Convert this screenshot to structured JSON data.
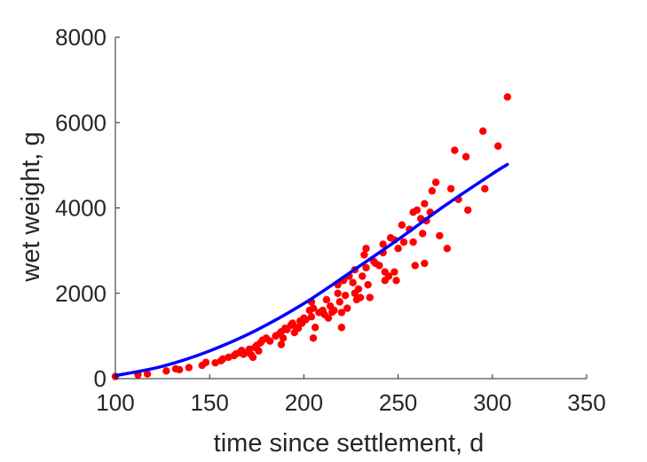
{
  "chart_data": {
    "type": "scatter",
    "title": "",
    "xlabel": "time since settlement, d",
    "ylabel": "wet weight, g",
    "xlim": [
      100,
      350
    ],
    "ylim": [
      0,
      8000
    ],
    "xticks": [
      100,
      150,
      200,
      250,
      300,
      350
    ],
    "yticks": [
      0,
      2000,
      4000,
      6000,
      8000
    ],
    "grid": false,
    "legend": "none",
    "colors": {
      "points": "#ff0000",
      "fit": "#0000ff",
      "axes": "#262626"
    },
    "series": [
      {
        "type": "scatter",
        "points": [
          [
            100,
            50
          ],
          [
            112,
            90
          ],
          [
            117,
            110
          ],
          [
            127,
            180
          ],
          [
            132,
            230
          ],
          [
            134,
            210
          ],
          [
            139,
            260
          ],
          [
            146,
            310
          ],
          [
            148,
            380
          ],
          [
            153,
            370
          ],
          [
            156,
            420
          ],
          [
            157,
            460
          ],
          [
            160,
            500
          ],
          [
            163,
            540
          ],
          [
            164,
            580
          ],
          [
            166,
            610
          ],
          [
            167,
            660
          ],
          [
            168,
            570
          ],
          [
            170,
            620
          ],
          [
            171,
            690
          ],
          [
            172,
            560
          ],
          [
            173,
            500
          ],
          [
            174,
            730
          ],
          [
            175,
            780
          ],
          [
            176,
            650
          ],
          [
            177,
            840
          ],
          [
            178,
            900
          ],
          [
            180,
            950
          ],
          [
            182,
            880
          ],
          [
            185,
            1000
          ],
          [
            187,
            1050
          ],
          [
            188,
            1100
          ],
          [
            188,
            800
          ],
          [
            189,
            950
          ],
          [
            190,
            1180
          ],
          [
            191,
            1150
          ],
          [
            193,
            1250
          ],
          [
            194,
            1300
          ],
          [
            195,
            1080
          ],
          [
            196,
            1200
          ],
          [
            197,
            1180
          ],
          [
            198,
            1350
          ],
          [
            199,
            1300
          ],
          [
            200,
            1420
          ],
          [
            201,
            1380
          ],
          [
            203,
            1600
          ],
          [
            204,
            1800
          ],
          [
            204,
            1450
          ],
          [
            205,
            1650
          ],
          [
            205,
            950
          ],
          [
            206,
            1200
          ],
          [
            208,
            1550
          ],
          [
            210,
            1600
          ],
          [
            211,
            1500
          ],
          [
            212,
            1850
          ],
          [
            213,
            1420
          ],
          [
            214,
            1700
          ],
          [
            215,
            1560
          ],
          [
            216,
            1600
          ],
          [
            218,
            2000
          ],
          [
            218,
            2200
          ],
          [
            219,
            1800
          ],
          [
            220,
            1550
          ],
          [
            220,
            1200
          ],
          [
            221,
            2300
          ],
          [
            222,
            1950
          ],
          [
            223,
            1650
          ],
          [
            224,
            2400
          ],
          [
            226,
            2250
          ],
          [
            227,
            2550
          ],
          [
            227,
            2000
          ],
          [
            228,
            1850
          ],
          [
            229,
            2100
          ],
          [
            230,
            1900
          ],
          [
            231,
            2400
          ],
          [
            232,
            2900
          ],
          [
            233,
            3050
          ],
          [
            233,
            2600
          ],
          [
            234,
            2200
          ],
          [
            235,
            1900
          ],
          [
            237,
            2750
          ],
          [
            238,
            2700
          ],
          [
            240,
            2650
          ],
          [
            242,
            2950
          ],
          [
            242,
            3150
          ],
          [
            243,
            2500
          ],
          [
            243,
            2300
          ],
          [
            245,
            2400
          ],
          [
            246,
            3300
          ],
          [
            248,
            2500
          ],
          [
            248,
            3250
          ],
          [
            249,
            2300
          ],
          [
            250,
            3050
          ],
          [
            252,
            3600
          ],
          [
            253,
            3200
          ],
          [
            256,
            3500
          ],
          [
            258,
            3900
          ],
          [
            258,
            3200
          ],
          [
            259,
            2650
          ],
          [
            260,
            3950
          ],
          [
            262,
            3750
          ],
          [
            263,
            3400
          ],
          [
            264,
            4100
          ],
          [
            264,
            2700
          ],
          [
            265,
            3700
          ],
          [
            267,
            3900
          ],
          [
            268,
            4400
          ],
          [
            270,
            4600
          ],
          [
            272,
            3350
          ],
          [
            276,
            3050
          ],
          [
            278,
            4450
          ],
          [
            280,
            5350
          ],
          [
            282,
            4200
          ],
          [
            286,
            5200
          ],
          [
            287,
            3950
          ],
          [
            295,
            5800
          ],
          [
            296,
            4450
          ],
          [
            303,
            5450
          ],
          [
            308,
            6600
          ]
        ]
      },
      {
        "type": "line",
        "points": [
          [
            100,
            70
          ],
          [
            125,
            290
          ],
          [
            150,
            650
          ],
          [
            175,
            1140
          ],
          [
            200,
            1760
          ],
          [
            225,
            2500
          ],
          [
            250,
            3260
          ],
          [
            275,
            4060
          ],
          [
            300,
            4800
          ],
          [
            308,
            5020
          ]
        ]
      }
    ]
  }
}
